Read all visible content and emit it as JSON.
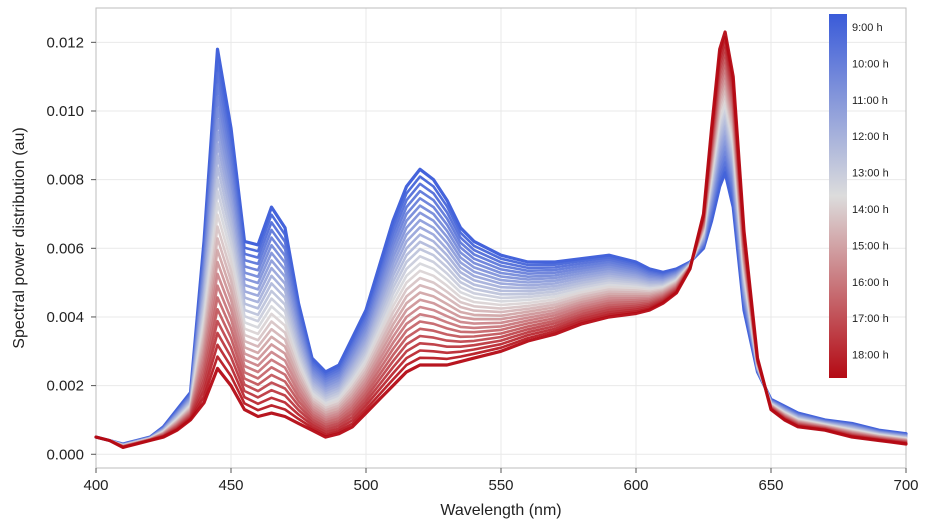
{
  "chart_data": {
    "type": "line",
    "title": "",
    "xlabel": "Wavelength (nm)",
    "ylabel": "Spectral power distribution (au)",
    "xlim": [
      400,
      700
    ],
    "ylim": [
      -0.0004,
      0.013
    ],
    "xticks": [
      400,
      450,
      500,
      550,
      600,
      650,
      700
    ],
    "xtick_labels": [
      "400",
      "450",
      "500",
      "550",
      "600",
      "650",
      "700"
    ],
    "yticks": [
      0,
      0.002,
      0.004,
      0.006,
      0.008,
      0.01,
      0.012
    ],
    "ytick_labels": [
      "0.000",
      "0.002",
      "0.004",
      "0.006",
      "0.008",
      "0.010",
      "0.012"
    ],
    "grid": true,
    "legend": {
      "placement": "top-right",
      "type": "colorbar",
      "labels": [
        "9:00 h",
        "10:00 h",
        "11:00 h",
        "12:00 h",
        "13:00 h",
        "14:00 h",
        "15:00 h",
        "16:00 h",
        "17:00 h",
        "18:00 h"
      ]
    },
    "colors": {
      "start": "#3a5bd9",
      "mid": "#dcdcdc",
      "end": "#b40a14"
    },
    "series_count": 28,
    "x": [
      400,
      405,
      410,
      415,
      420,
      425,
      430,
      435,
      440,
      445,
      450,
      455,
      460,
      465,
      470,
      475,
      480,
      485,
      490,
      495,
      500,
      505,
      510,
      515,
      520,
      525,
      530,
      535,
      540,
      550,
      560,
      570,
      580,
      590,
      600,
      605,
      610,
      615,
      620,
      625,
      628,
      631,
      633,
      636,
      640,
      645,
      650,
      655,
      660,
      670,
      680,
      690,
      700
    ],
    "series": [
      {
        "values": [
          0.0005,
          0.0004,
          0.0003,
          0.0004,
          0.0005,
          0.0008,
          0.0013,
          0.0018,
          0.0062,
          0.0118,
          0.0095,
          0.0062,
          0.0061,
          0.0072,
          0.0066,
          0.0044,
          0.0028,
          0.0024,
          0.0026,
          0.0034,
          0.0042,
          0.0055,
          0.0068,
          0.0078,
          0.0083,
          0.008,
          0.0074,
          0.0066,
          0.0062,
          0.0058,
          0.0056,
          0.0056,
          0.0057,
          0.0058,
          0.0056,
          0.0054,
          0.0053,
          0.0054,
          0.0056,
          0.006,
          0.0068,
          0.0078,
          0.0082,
          0.0072,
          0.0042,
          0.0024,
          0.0016,
          0.0014,
          0.0012,
          0.001,
          0.0009,
          0.0007,
          0.0006
        ]
      },
      {
        "values": [
          0.0005,
          0.0004,
          0.0002,
          0.0003,
          0.0004,
          0.0005,
          0.0007,
          0.001,
          0.0015,
          0.0025,
          0.002,
          0.0013,
          0.0011,
          0.0012,
          0.0011,
          0.0009,
          0.0007,
          0.0005,
          0.0006,
          0.0008,
          0.0012,
          0.0016,
          0.002,
          0.0024,
          0.0026,
          0.0026,
          0.0026,
          0.0027,
          0.0028,
          0.003,
          0.0033,
          0.0035,
          0.0038,
          0.004,
          0.0041,
          0.0042,
          0.0044,
          0.0047,
          0.0054,
          0.007,
          0.0095,
          0.0118,
          0.0123,
          0.011,
          0.0065,
          0.0028,
          0.0013,
          0.001,
          0.0008,
          0.0007,
          0.0005,
          0.0004,
          0.0003
        ]
      }
    ]
  }
}
